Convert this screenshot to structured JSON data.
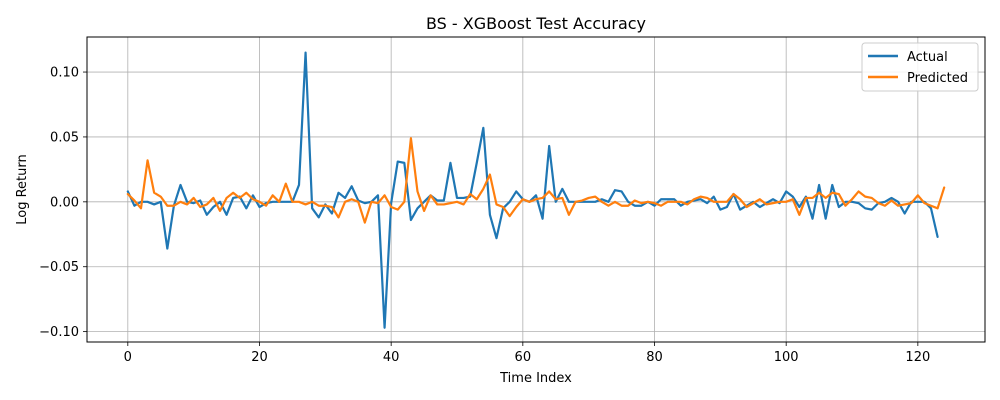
{
  "chart_data": {
    "type": "line",
    "title": "BS - XGBoost Test Accuracy",
    "xlabel": "Time Index",
    "ylabel": "Log Return",
    "xlim": [
      -6.2,
      130.2
    ],
    "ylim": [
      -0.108,
      0.127
    ],
    "xticks": [
      0,
      20,
      40,
      60,
      80,
      100,
      120
    ],
    "yticks": [
      -0.1,
      -0.05,
      0.0,
      0.05,
      0.1
    ],
    "ytick_labels": [
      "−0.10",
      "−0.05",
      "0.00",
      "0.05",
      "0.10"
    ],
    "grid": true,
    "legend_position": "top-right",
    "series": [
      {
        "name": "Actual",
        "color": "#1f77b4",
        "values": [
          0.008,
          -0.003,
          0.0,
          0.0,
          -0.002,
          0.0,
          -0.036,
          -0.003,
          0.013,
          0.0,
          -0.001,
          0.001,
          -0.01,
          -0.004,
          0.0,
          -0.01,
          0.003,
          0.004,
          -0.005,
          0.005,
          -0.004,
          -0.001,
          0.0,
          0.0,
          0.0,
          0.0,
          0.013,
          0.115,
          -0.005,
          -0.012,
          -0.002,
          -0.009,
          0.007,
          0.003,
          0.012,
          0.001,
          -0.001,
          0.0,
          0.005,
          -0.097,
          -0.001,
          0.031,
          0.03,
          -0.014,
          -0.005,
          0.0,
          0.005,
          0.001,
          0.001,
          0.03,
          0.003,
          0.003,
          0.004,
          0.03,
          0.057,
          -0.01,
          -0.028,
          -0.005,
          0.0,
          0.008,
          0.002,
          0.0,
          0.005,
          -0.013,
          0.043,
          0.0,
          0.01,
          0.0,
          0.0,
          0.0,
          0.0,
          0.0,
          0.002,
          0.0,
          0.009,
          0.008,
          0.0,
          -0.003,
          -0.003,
          0.0,
          -0.003,
          0.002,
          0.002,
          0.002,
          -0.003,
          0.0,
          0.001,
          0.002,
          -0.001,
          0.004,
          -0.006,
          -0.004,
          0.006,
          -0.006,
          -0.003,
          0.0,
          -0.004,
          -0.001,
          0.002,
          -0.001,
          0.008,
          0.004,
          -0.004,
          0.004,
          -0.013,
          0.013,
          -0.013,
          0.013,
          -0.004,
          0.0,
          0.0,
          -0.001,
          -0.005,
          -0.006,
          -0.001,
          0.0,
          0.003,
          0.0,
          -0.009,
          0.0,
          0.0,
          0.0,
          -0.005,
          -0.027
        ]
      },
      {
        "name": "Predicted",
        "color": "#ff7f0e",
        "values": [
          0.006,
          0.001,
          -0.005,
          0.032,
          0.007,
          0.004,
          -0.003,
          -0.003,
          0.0,
          -0.002,
          0.003,
          -0.004,
          -0.002,
          0.003,
          -0.007,
          0.003,
          0.007,
          0.003,
          0.007,
          0.002,
          0.0,
          -0.003,
          0.005,
          0.0,
          0.014,
          0.0,
          0.0,
          -0.002,
          0.0,
          -0.003,
          -0.003,
          -0.004,
          -0.012,
          0.0,
          0.002,
          0.0,
          -0.016,
          0.0,
          -0.001,
          0.005,
          -0.004,
          -0.006,
          0.0,
          0.049,
          0.008,
          -0.007,
          0.005,
          -0.002,
          -0.002,
          -0.001,
          0.0,
          -0.002,
          0.006,
          0.002,
          0.01,
          0.021,
          -0.002,
          -0.004,
          -0.011,
          -0.004,
          0.002,
          0.0,
          0.002,
          0.003,
          0.008,
          0.002,
          0.003,
          -0.01,
          0.0,
          0.001,
          0.003,
          0.004,
          0.0,
          -0.003,
          0.0,
          -0.003,
          -0.003,
          0.001,
          -0.001,
          0.0,
          -0.001,
          -0.003,
          0.0,
          0.0,
          0.0,
          -0.002,
          0.002,
          0.004,
          0.003,
          0.0,
          0.0,
          0.0,
          0.006,
          0.002,
          -0.004,
          -0.001,
          0.002,
          -0.002,
          -0.001,
          0.0,
          0.0,
          0.002,
          -0.01,
          0.003,
          0.003,
          0.007,
          0.003,
          0.007,
          0.006,
          -0.003,
          0.002,
          0.008,
          0.004,
          0.003,
          -0.001,
          -0.003,
          0.001,
          -0.003,
          -0.002,
          -0.001,
          0.005,
          -0.001,
          -0.003,
          -0.005,
          0.011
        ]
      }
    ]
  }
}
